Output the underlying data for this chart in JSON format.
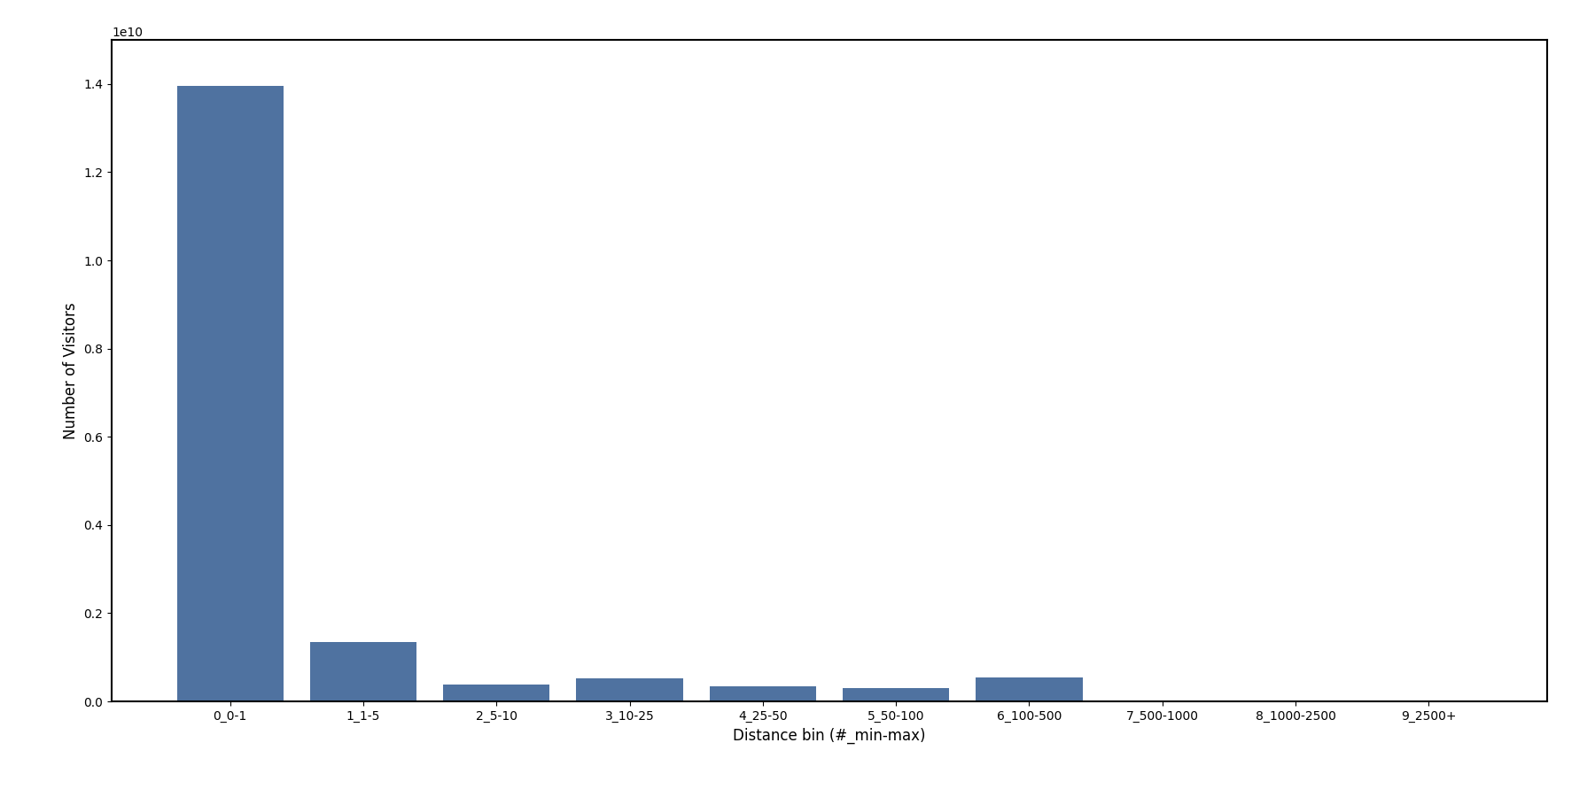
{
  "categories": [
    "0_0-1",
    "1_1-5",
    "2_5-10",
    "3_10-25",
    "4_25-50",
    "5_50-100",
    "6_100-500",
    "7_500-1000",
    "8_1000-2500",
    "9_2500+"
  ],
  "values": [
    13950000000.0,
    1350000000.0,
    380000000.0,
    520000000.0,
    350000000.0,
    300000000.0,
    550000000.0,
    10000000.0,
    10000000.0,
    10000000.0
  ],
  "bar_color": "#4f72a0",
  "ylabel": "Number of Visitors",
  "xlabel": "Distance bin (#_min-max)",
  "ylim": [
    0,
    15000000000.0
  ],
  "background_color": "#ffffff",
  "figsize": [
    18.0,
    9.0
  ],
  "dpi": 100
}
